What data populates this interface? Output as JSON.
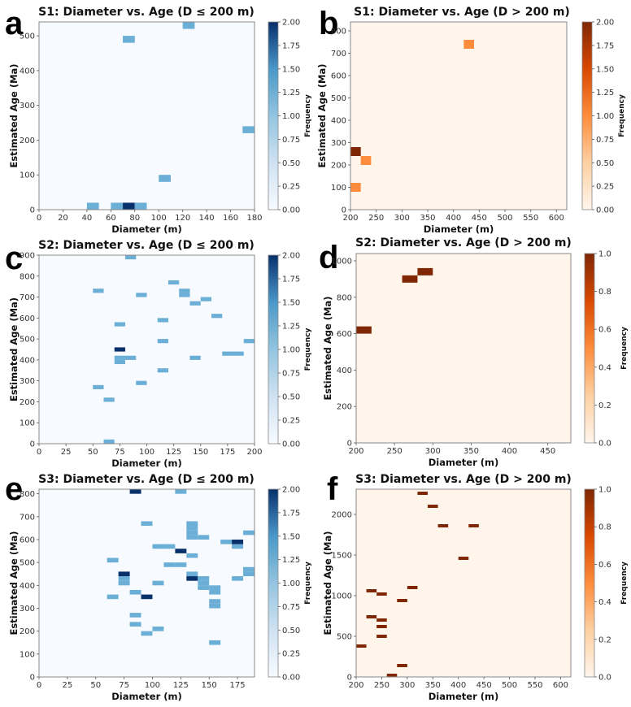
{
  "figure": {
    "panel_letters": [
      "a",
      "b",
      "c",
      "d",
      "e",
      "f"
    ]
  },
  "chart_data": [
    {
      "type": "heatmap",
      "panel": "a",
      "title": "S1: Diameter vs. Age (D ≤ 200 m)",
      "xlabel": "Diameter (m)",
      "ylabel": "Estimated Age (Ma)",
      "xlim": [
        0,
        180
      ],
      "ylim": [
        0,
        540
      ],
      "xticks": [
        0,
        20,
        40,
        60,
        80,
        100,
        120,
        140,
        160,
        180
      ],
      "yticks": [
        0,
        100,
        200,
        300,
        400,
        500
      ],
      "bin_size": [
        10,
        20
      ],
      "colormap": "Blues",
      "colorbar": {
        "label": "Frequency",
        "range": [
          0,
          2
        ],
        "ticks": [
          "0.00",
          "0.25",
          "0.50",
          "0.75",
          "1.00",
          "1.25",
          "1.50",
          "1.75",
          "2.00"
        ]
      },
      "cells": [
        {
          "x0": 40,
          "y0": 0,
          "count": 1
        },
        {
          "x0": 60,
          "y0": 0,
          "count": 1
        },
        {
          "x0": 70,
          "y0": 0,
          "count": 2
        },
        {
          "x0": 80,
          "y0": 0,
          "count": 1
        },
        {
          "x0": 100,
          "y0": 80,
          "count": 1
        },
        {
          "x0": 170,
          "y0": 220,
          "count": 1
        },
        {
          "x0": 70,
          "y0": 480,
          "count": 1
        },
        {
          "x0": 120,
          "y0": 520,
          "count": 1
        }
      ]
    },
    {
      "type": "heatmap",
      "panel": "b",
      "title": "S1: Diameter vs. Age (D > 200 m)",
      "xlabel": "Diameter (m)",
      "ylabel": "Estimated Age (Ma)",
      "xlim": [
        200,
        620
      ],
      "ylim": [
        0,
        840
      ],
      "xticks": [
        200,
        250,
        300,
        350,
        400,
        450,
        500,
        550,
        600
      ],
      "yticks": [
        0,
        100,
        200,
        300,
        400,
        500,
        600,
        700,
        800
      ],
      "bin_size": [
        20,
        40
      ],
      "colormap": "Oranges",
      "colorbar": {
        "label": "Frequency",
        "range": [
          0,
          2
        ],
        "ticks": [
          "0.00",
          "0.25",
          "0.50",
          "0.75",
          "1.00",
          "1.25",
          "1.50",
          "1.75",
          "2.00"
        ]
      },
      "cells": [
        {
          "x0": 200,
          "y0": 80,
          "count": 1
        },
        {
          "x0": 220,
          "y0": 200,
          "count": 1
        },
        {
          "x0": 200,
          "y0": 240,
          "count": 2
        },
        {
          "x0": 420,
          "y0": 720,
          "count": 1
        }
      ]
    },
    {
      "type": "heatmap",
      "panel": "c",
      "title": "S2: Diameter vs. Age (D ≤ 200 m)",
      "xlabel": "Diameter (m)",
      "ylabel": "Estimated Age (Ma)",
      "xlim": [
        0,
        200
      ],
      "ylim": [
        0,
        900
      ],
      "xticks": [
        0,
        25,
        50,
        75,
        100,
        125,
        150,
        175,
        200
      ],
      "yticks": [
        0,
        100,
        200,
        300,
        400,
        500,
        600,
        700,
        800,
        900
      ],
      "bin_size": [
        10,
        20
      ],
      "colormap": "Blues",
      "colorbar": {
        "label": "Frequency",
        "range": [
          0,
          2
        ],
        "ticks": [
          "0.00",
          "0.25",
          "0.50",
          "0.75",
          "1.00",
          "1.25",
          "1.50",
          "1.75",
          "2.00"
        ]
      },
      "cells": [
        {
          "x0": 60,
          "y0": 0,
          "count": 1
        },
        {
          "x0": 60,
          "y0": 200,
          "count": 1
        },
        {
          "x0": 50,
          "y0": 260,
          "count": 1
        },
        {
          "x0": 90,
          "y0": 280,
          "count": 1
        },
        {
          "x0": 110,
          "y0": 340,
          "count": 1
        },
        {
          "x0": 70,
          "y0": 380,
          "count": 1
        },
        {
          "x0": 70,
          "y0": 400,
          "count": 1
        },
        {
          "x0": 80,
          "y0": 400,
          "count": 1
        },
        {
          "x0": 140,
          "y0": 400,
          "count": 1
        },
        {
          "x0": 170,
          "y0": 420,
          "count": 1
        },
        {
          "x0": 180,
          "y0": 420,
          "count": 1
        },
        {
          "x0": 70,
          "y0": 440,
          "count": 2
        },
        {
          "x0": 110,
          "y0": 480,
          "count": 1
        },
        {
          "x0": 190,
          "y0": 480,
          "count": 1
        },
        {
          "x0": 70,
          "y0": 560,
          "count": 1
        },
        {
          "x0": 110,
          "y0": 580,
          "count": 1
        },
        {
          "x0": 160,
          "y0": 600,
          "count": 1
        },
        {
          "x0": 140,
          "y0": 660,
          "count": 1
        },
        {
          "x0": 150,
          "y0": 680,
          "count": 1
        },
        {
          "x0": 130,
          "y0": 700,
          "count": 1
        },
        {
          "x0": 90,
          "y0": 700,
          "count": 1
        },
        {
          "x0": 130,
          "y0": 720,
          "count": 1
        },
        {
          "x0": 50,
          "y0": 720,
          "count": 1
        },
        {
          "x0": 120,
          "y0": 760,
          "count": 1
        },
        {
          "x0": 80,
          "y0": 880,
          "count": 1
        }
      ]
    },
    {
      "type": "heatmap",
      "panel": "d",
      "title": "S2: Diameter vs. Age (D > 200 m)",
      "xlabel": "Diameter (m)",
      "ylabel": "Estimated Age (Ma)",
      "xlim": [
        200,
        480
      ],
      "ylim": [
        0,
        1040
      ],
      "xticks": [
        200,
        250,
        300,
        350,
        400,
        450
      ],
      "yticks": [
        0,
        200,
        400,
        600,
        800,
        1000
      ],
      "bin_size": [
        20,
        40
      ],
      "colormap": "Oranges",
      "colorbar": {
        "label": "Frequency",
        "range": [
          0,
          1
        ],
        "ticks": [
          "0.0",
          "0.2",
          "0.4",
          "0.6",
          "0.8",
          "1.0"
        ]
      },
      "cells": [
        {
          "x0": 200,
          "y0": 600,
          "count": 1
        },
        {
          "x0": 260,
          "y0": 880,
          "count": 1
        },
        {
          "x0": 280,
          "y0": 920,
          "count": 1
        }
      ]
    },
    {
      "type": "heatmap",
      "panel": "e",
      "title": "S3: Diameter vs. Age (D ≤ 200 m)",
      "xlabel": "Diameter (m)",
      "ylabel": "Estimated Age (Ma)",
      "xlim": [
        0,
        190
      ],
      "ylim": [
        0,
        820
      ],
      "xticks": [
        0,
        25,
        50,
        75,
        100,
        125,
        150,
        175
      ],
      "yticks": [
        0,
        100,
        200,
        300,
        400,
        500,
        600,
        700,
        800
      ],
      "bin_size": [
        10,
        20
      ],
      "colormap": "Blues",
      "colorbar": {
        "label": "Frequency",
        "range": [
          0,
          2
        ],
        "ticks": [
          "0.00",
          "0.25",
          "0.50",
          "0.75",
          "1.00",
          "1.25",
          "1.50",
          "1.75",
          "2.00"
        ]
      },
      "cells": [
        {
          "x0": 150,
          "y0": 140,
          "count": 1
        },
        {
          "x0": 90,
          "y0": 180,
          "count": 1
        },
        {
          "x0": 100,
          "y0": 200,
          "count": 1
        },
        {
          "x0": 80,
          "y0": 220,
          "count": 1
        },
        {
          "x0": 80,
          "y0": 260,
          "count": 1
        },
        {
          "x0": 150,
          "y0": 300,
          "count": 1
        },
        {
          "x0": 150,
          "y0": 320,
          "count": 1
        },
        {
          "x0": 60,
          "y0": 340,
          "count": 1
        },
        {
          "x0": 90,
          "y0": 340,
          "count": 2
        },
        {
          "x0": 80,
          "y0": 360,
          "count": 1
        },
        {
          "x0": 150,
          "y0": 360,
          "count": 1
        },
        {
          "x0": 140,
          "y0": 380,
          "count": 1
        },
        {
          "x0": 150,
          "y0": 380,
          "count": 1
        },
        {
          "x0": 70,
          "y0": 400,
          "count": 1
        },
        {
          "x0": 100,
          "y0": 400,
          "count": 1
        },
        {
          "x0": 140,
          "y0": 400,
          "count": 1
        },
        {
          "x0": 70,
          "y0": 420,
          "count": 1
        },
        {
          "x0": 130,
          "y0": 420,
          "count": 2
        },
        {
          "x0": 140,
          "y0": 420,
          "count": 1
        },
        {
          "x0": 170,
          "y0": 420,
          "count": 1
        },
        {
          "x0": 70,
          "y0": 440,
          "count": 2
        },
        {
          "x0": 130,
          "y0": 440,
          "count": 1
        },
        {
          "x0": 180,
          "y0": 440,
          "count": 1
        },
        {
          "x0": 180,
          "y0": 460,
          "count": 1
        },
        {
          "x0": 110,
          "y0": 480,
          "count": 1
        },
        {
          "x0": 120,
          "y0": 480,
          "count": 1
        },
        {
          "x0": 60,
          "y0": 500,
          "count": 1
        },
        {
          "x0": 130,
          "y0": 520,
          "count": 1
        },
        {
          "x0": 120,
          "y0": 540,
          "count": 2
        },
        {
          "x0": 100,
          "y0": 560,
          "count": 1
        },
        {
          "x0": 110,
          "y0": 560,
          "count": 1
        },
        {
          "x0": 170,
          "y0": 560,
          "count": 1
        },
        {
          "x0": 160,
          "y0": 580,
          "count": 1
        },
        {
          "x0": 170,
          "y0": 580,
          "count": 2
        },
        {
          "x0": 130,
          "y0": 600,
          "count": 1
        },
        {
          "x0": 140,
          "y0": 600,
          "count": 1
        },
        {
          "x0": 130,
          "y0": 620,
          "count": 1
        },
        {
          "x0": 180,
          "y0": 620,
          "count": 1
        },
        {
          "x0": 130,
          "y0": 640,
          "count": 1
        },
        {
          "x0": 90,
          "y0": 660,
          "count": 1
        },
        {
          "x0": 130,
          "y0": 660,
          "count": 1
        },
        {
          "x0": 80,
          "y0": 800,
          "count": 2
        },
        {
          "x0": 120,
          "y0": 800,
          "count": 1
        }
      ]
    },
    {
      "type": "heatmap",
      "panel": "f",
      "title": "S3: Diameter vs. Age (D > 200 m)",
      "xlabel": "Diameter (m)",
      "ylabel": "Estimated Age (Ma)",
      "xlim": [
        200,
        620
      ],
      "ylim": [
        0,
        2310
      ],
      "xticks": [
        200,
        250,
        300,
        350,
        400,
        450,
        500,
        550,
        600
      ],
      "yticks": [
        0,
        500,
        1000,
        1500,
        2000
      ],
      "bin_size": [
        20,
        40
      ],
      "colormap": "Oranges",
      "colorbar": {
        "label": "Frequency",
        "range": [
          0,
          1
        ],
        "ticks": [
          "0.0",
          "0.2",
          "0.4",
          "0.6",
          "0.8",
          "1.0"
        ]
      },
      "cells": [
        {
          "x0": 260,
          "y0": 0,
          "count": 1
        },
        {
          "x0": 280,
          "y0": 120,
          "count": 1
        },
        {
          "x0": 200,
          "y0": 360,
          "count": 1
        },
        {
          "x0": 240,
          "y0": 480,
          "count": 1
        },
        {
          "x0": 240,
          "y0": 600,
          "count": 1
        },
        {
          "x0": 240,
          "y0": 680,
          "count": 1
        },
        {
          "x0": 220,
          "y0": 720,
          "count": 1
        },
        {
          "x0": 280,
          "y0": 920,
          "count": 1
        },
        {
          "x0": 240,
          "y0": 1000,
          "count": 1
        },
        {
          "x0": 220,
          "y0": 1040,
          "count": 1
        },
        {
          "x0": 300,
          "y0": 1080,
          "count": 1
        },
        {
          "x0": 400,
          "y0": 1440,
          "count": 1
        },
        {
          "x0": 360,
          "y0": 1840,
          "count": 1
        },
        {
          "x0": 420,
          "y0": 1840,
          "count": 1
        },
        {
          "x0": 340,
          "y0": 2080,
          "count": 1
        },
        {
          "x0": 320,
          "y0": 2240,
          "count": 1
        }
      ]
    }
  ]
}
